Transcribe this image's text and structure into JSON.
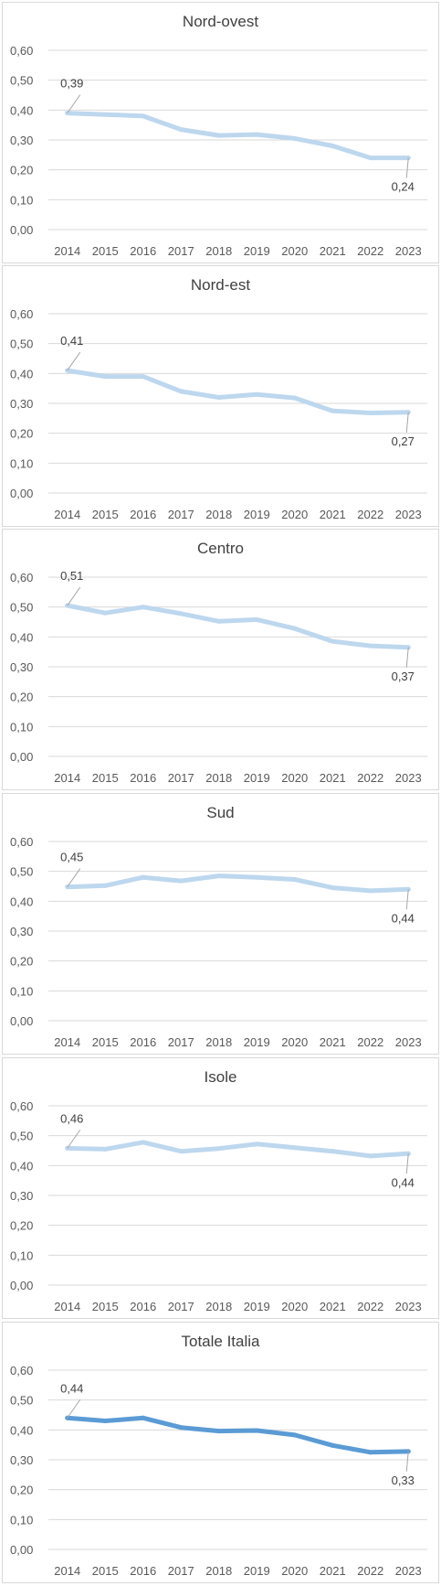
{
  "chart_data": [
    {
      "type": "line",
      "title": "Nord-ovest",
      "categories": [
        "2014",
        "2015",
        "2016",
        "2017",
        "2018",
        "2019",
        "2020",
        "2021",
        "2022",
        "2023"
      ],
      "values": [
        0.39,
        0.385,
        0.38,
        0.335,
        0.315,
        0.318,
        0.305,
        0.28,
        0.24,
        0.24
      ],
      "data_labels": [
        {
          "index": 0,
          "text": "0,39"
        },
        {
          "index": 9,
          "text": "0,24"
        }
      ],
      "yticks": [
        "0,00",
        "0,10",
        "0,20",
        "0,30",
        "0,40",
        "0,50",
        "0,60"
      ],
      "ylim": [
        0,
        0.6
      ],
      "grid": true,
      "color": "#bdd7ee"
    },
    {
      "type": "line",
      "title": "Nord-est",
      "categories": [
        "2014",
        "2015",
        "2016",
        "2017",
        "2018",
        "2019",
        "2020",
        "2021",
        "2022",
        "2023"
      ],
      "values": [
        0.41,
        0.39,
        0.39,
        0.34,
        0.32,
        0.33,
        0.318,
        0.275,
        0.268,
        0.27
      ],
      "data_labels": [
        {
          "index": 0,
          "text": "0,41"
        },
        {
          "index": 9,
          "text": "0,27"
        }
      ],
      "yticks": [
        "0,00",
        "0,10",
        "0,20",
        "0,30",
        "0,40",
        "0,50",
        "0,60"
      ],
      "ylim": [
        0,
        0.6
      ],
      "grid": true,
      "color": "#bdd7ee"
    },
    {
      "type": "line",
      "title": "Centro",
      "categories": [
        "2014",
        "2015",
        "2016",
        "2017",
        "2018",
        "2019",
        "2020",
        "2021",
        "2022",
        "2023"
      ],
      "values": [
        0.505,
        0.48,
        0.5,
        0.478,
        0.452,
        0.458,
        0.428,
        0.385,
        0.37,
        0.365
      ],
      "data_labels": [
        {
          "index": 0,
          "text": "0,51"
        },
        {
          "index": 9,
          "text": "0,37"
        }
      ],
      "yticks": [
        "0,00",
        "0,10",
        "0,20",
        "0,30",
        "0,40",
        "0,50",
        "0,60"
      ],
      "ylim": [
        0,
        0.6
      ],
      "grid": true,
      "color": "#bdd7ee"
    },
    {
      "type": "line",
      "title": "Sud",
      "categories": [
        "2014",
        "2015",
        "2016",
        "2017",
        "2018",
        "2019",
        "2020",
        "2021",
        "2022",
        "2023"
      ],
      "values": [
        0.448,
        0.452,
        0.48,
        0.468,
        0.485,
        0.48,
        0.473,
        0.445,
        0.435,
        0.44
      ],
      "data_labels": [
        {
          "index": 0,
          "text": "0,45"
        },
        {
          "index": 9,
          "text": "0,44"
        }
      ],
      "yticks": [
        "0,00",
        "0,10",
        "0,20",
        "0,30",
        "0,40",
        "0,50",
        "0,60"
      ],
      "ylim": [
        0,
        0.6
      ],
      "grid": true,
      "color": "#bdd7ee"
    },
    {
      "type": "line",
      "title": "Isole",
      "categories": [
        "2014",
        "2015",
        "2016",
        "2017",
        "2018",
        "2019",
        "2020",
        "2021",
        "2022",
        "2023"
      ],
      "values": [
        0.458,
        0.455,
        0.478,
        0.448,
        0.457,
        0.472,
        0.46,
        0.448,
        0.432,
        0.44
      ],
      "data_labels": [
        {
          "index": 0,
          "text": "0,46"
        },
        {
          "index": 9,
          "text": "0,44"
        }
      ],
      "yticks": [
        "0,00",
        "0,10",
        "0,20",
        "0,30",
        "0,40",
        "0,50",
        "0,60"
      ],
      "ylim": [
        0,
        0.6
      ],
      "grid": true,
      "color": "#bdd7ee"
    },
    {
      "type": "line",
      "title": "Totale Italia",
      "categories": [
        "2014",
        "2015",
        "2016",
        "2017",
        "2018",
        "2019",
        "2020",
        "2021",
        "2022",
        "2023"
      ],
      "values": [
        0.44,
        0.43,
        0.44,
        0.408,
        0.396,
        0.398,
        0.383,
        0.348,
        0.325,
        0.328
      ],
      "data_labels": [
        {
          "index": 0,
          "text": "0,44"
        },
        {
          "index": 9,
          "text": "0,33"
        }
      ],
      "yticks": [
        "0,00",
        "0,10",
        "0,20",
        "0,30",
        "0,40",
        "0,50",
        "0,60"
      ],
      "ylim": [
        0,
        0.6
      ],
      "grid": true,
      "color": "#5b9bd5"
    }
  ]
}
